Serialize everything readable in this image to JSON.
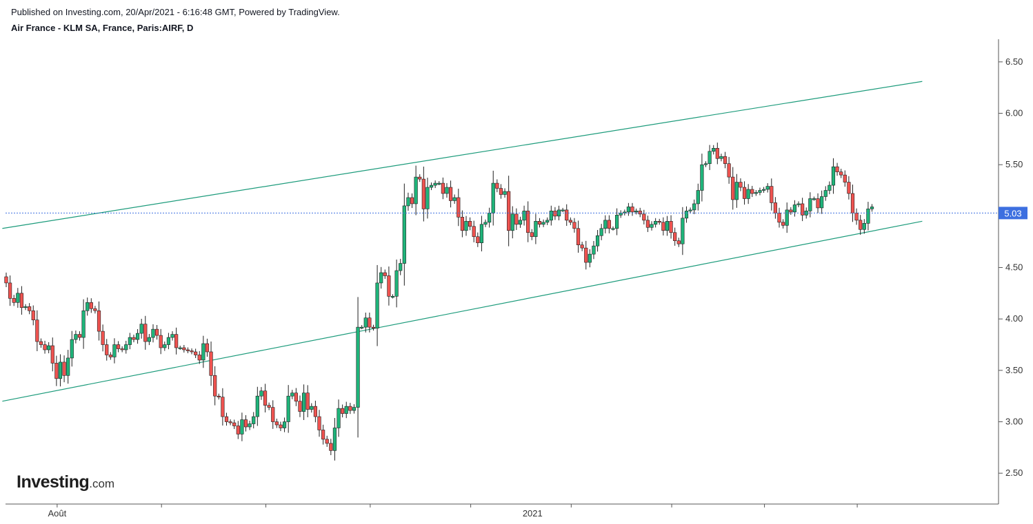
{
  "header": {
    "published": "Published on Investing.com, 20/Apr/2021 - 6:16:48 GMT, Powered by TradingView.",
    "symbol": "Air France - KLM SA, France, Paris:AIRF, D"
  },
  "logo": {
    "main": "Investing",
    "suffix": ".com"
  },
  "colors": {
    "up": "#26a69a",
    "upFill": "#1fb47a",
    "down": "#ef5350",
    "trend": "#1a9a7a",
    "price": "#3d6fe0"
  },
  "chart_data": {
    "type": "candlestick",
    "title": "Air France - KLM SA, France, Paris:AIRF, D",
    "ylim": [
      2.2,
      6.72
    ],
    "y_ticks": [
      "2.50",
      "3.00",
      "3.50",
      "4.00",
      "4.50",
      "5.00",
      "5.50",
      "6.00",
      "6.50"
    ],
    "x_labels": [
      {
        "label": "Août",
        "index": 13
      },
      {
        "label": "2021",
        "index": 136
      }
    ],
    "last_price": "5.03",
    "last_price_value": 5.03,
    "trend_lines": [
      {
        "name": "upper",
        "from": {
          "index": -1,
          "value": 4.88
        },
        "to": {
          "index": 237,
          "value": 6.31
        }
      },
      {
        "name": "lower",
        "from": {
          "index": -1,
          "value": 3.2
        },
        "to": {
          "index": 237,
          "value": 4.95
        }
      }
    ],
    "close": [
      4.35,
      4.2,
      4.16,
      4.25,
      4.11,
      4.12,
      4.08,
      3.99,
      3.78,
      3.75,
      3.7,
      3.74,
      3.57,
      3.42,
      3.58,
      3.45,
      3.62,
      3.8,
      3.85,
      3.82,
      4.08,
      4.16,
      4.1,
      4.08,
      3.88,
      3.75,
      3.65,
      3.63,
      3.75,
      3.71,
      3.7,
      3.75,
      3.82,
      3.8,
      3.86,
      3.95,
      3.78,
      3.82,
      3.9,
      3.84,
      3.72,
      3.75,
      3.82,
      3.85,
      3.72,
      3.72,
      3.7,
      3.69,
      3.68,
      3.65,
      3.6,
      3.76,
      3.68,
      3.45,
      3.25,
      3.24,
      3.05,
      3.0,
      2.99,
      2.96,
      2.88,
      3.02,
      2.95,
      2.98,
      3.05,
      3.25,
      3.3,
      3.16,
      3.14,
      3.0,
      2.97,
      2.94,
      3.0,
      3.25,
      3.28,
      3.2,
      3.1,
      3.28,
      3.12,
      3.15,
      3.05,
      2.92,
      2.83,
      2.79,
      2.72,
      2.94,
      3.13,
      3.08,
      3.15,
      3.11,
      3.14,
      3.92,
      3.92,
      4.01,
      3.92,
      3.91,
      4.35,
      4.45,
      4.42,
      4.22,
      4.22,
      4.47,
      4.54,
      5.1,
      5.18,
      5.12,
      5.38,
      5.36,
      5.07,
      5.28,
      5.3,
      5.32,
      5.32,
      5.22,
      5.28,
      5.15,
      5.18,
      4.99,
      4.86,
      4.95,
      4.9,
      4.8,
      4.74,
      4.92,
      4.94,
      5.03,
      5.32,
      5.27,
      5.21,
      5.24,
      4.86,
      5.02,
      4.92,
      4.96,
      5.05,
      4.84,
      4.8,
      4.95,
      4.92,
      4.94,
      4.96,
      5.05,
      5.0,
      5.06,
      5.06,
      4.96,
      4.94,
      4.88,
      4.72,
      4.69,
      4.55,
      4.63,
      4.71,
      4.81,
      4.88,
      4.96,
      4.88,
      4.88,
      5.01,
      5.03,
      5.04,
      5.09,
      5.04,
      5.05,
      5.02,
      4.96,
      4.89,
      4.92,
      4.95,
      4.94,
      4.86,
      4.95,
      4.84,
      4.76,
      4.73,
      4.98,
      5.05,
      5.06,
      5.12,
      5.25,
      5.5,
      5.51,
      5.63,
      5.66,
      5.56,
      5.58,
      5.51,
      5.38,
      5.16,
      5.33,
      5.28,
      5.17,
      5.26,
      5.22,
      5.23,
      5.25,
      5.26,
      5.29,
      5.13,
      5.03,
      4.94,
      4.91,
      5.06,
      5.04,
      5.11,
      5.12,
      5.01,
      5.05,
      5.17,
      5.17,
      5.08,
      5.19,
      5.25,
      5.3,
      5.48,
      5.43,
      5.4,
      5.33,
      5.22,
      5.03,
      4.96,
      4.87,
      4.93,
      5.07,
      5.09
    ]
  }
}
